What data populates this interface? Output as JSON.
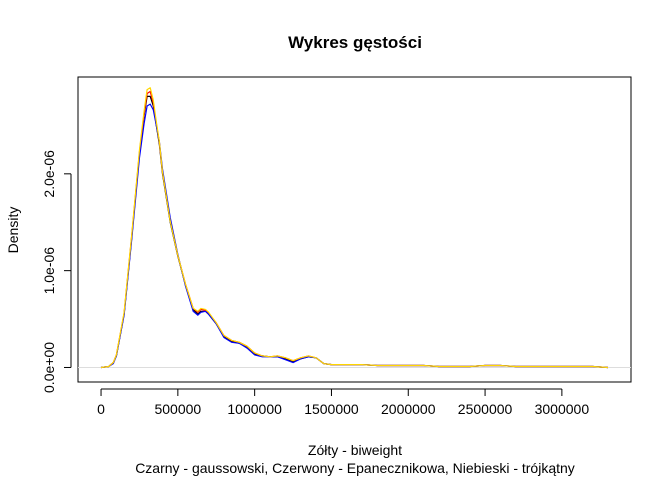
{
  "chart_data": {
    "type": "line",
    "title": "Wykres gęstości",
    "xlabel": "Zółty - biweight",
    "xlabel_line2": "Czarny - gaussowski, Czerwony - Epanecznikowa, Niebieski - trójkątny",
    "ylabel": "Density",
    "xlim": [
      -150000,
      3450000
    ],
    "ylim": [
      -1.5e-07,
      3e-06
    ],
    "x_ticks": [
      0,
      500000,
      1000000,
      1500000,
      2000000,
      2500000,
      3000000
    ],
    "x_tick_labels": [
      "0",
      "500000",
      "1000000",
      "1500000",
      "2000000",
      "2500000",
      "3000000"
    ],
    "y_ticks": [
      0,
      1e-06,
      2e-06
    ],
    "y_tick_labels": [
      "0.0e+00",
      "1.0e-06",
      "2.0e-06"
    ],
    "grid": false,
    "baseline_color": "#dddddd",
    "x": [
      0,
      50000,
      80000,
      100000,
      150000,
      200000,
      250000,
      280000,
      300000,
      320000,
      340000,
      360000,
      380000,
      400000,
      450000,
      500000,
      550000,
      600000,
      630000,
      650000,
      680000,
      700000,
      750000,
      800000,
      850000,
      900000,
      950000,
      1000000,
      1050000,
      1100000,
      1150000,
      1200000,
      1250000,
      1300000,
      1350000,
      1400000,
      1450000,
      1500000,
      1600000,
      1700000,
      1800000,
      1900000,
      2000000,
      2100000,
      2200000,
      2300000,
      2400000,
      2500000,
      2600000,
      2700000,
      2800000,
      2900000,
      3000000,
      3100000,
      3200000,
      3300000
    ],
    "series": [
      {
        "color": "#000000",
        "values": [
          0,
          1e-08,
          5e-08,
          1.2e-07,
          5.5e-07,
          1.35e-06,
          2.2e-06,
          2.6e-06,
          2.8e-06,
          2.8e-06,
          2.7e-06,
          2.5e-06,
          2.3e-06,
          2e-06,
          1.5e-06,
          1.15e-06,
          8.5e-07,
          6e-07,
          5.5e-07,
          5.8e-07,
          5.8e-07,
          5.5e-07,
          4.5e-07,
          3.2e-07,
          2.7e-07,
          2.5e-07,
          2.1e-07,
          1.4e-07,
          1.2e-07,
          1.1e-07,
          1.1e-07,
          9e-08,
          6e-08,
          9e-08,
          1.1e-07,
          1e-07,
          4e-08,
          3e-08,
          3e-08,
          3e-08,
          2e-08,
          2e-08,
          2e-08,
          2e-08,
          1e-08,
          1e-08,
          1e-08,
          2e-08,
          2e-08,
          1e-08,
          1e-08,
          1e-08,
          1e-08,
          1e-08,
          1e-08,
          0
        ]
      },
      {
        "color": "#ff0000",
        "values": [
          0,
          1e-08,
          5e-08,
          1.3e-07,
          5.6e-07,
          1.37e-06,
          2.22e-06,
          2.62e-06,
          2.83e-06,
          2.85e-06,
          2.73e-06,
          2.52e-06,
          2.32e-06,
          2.02e-06,
          1.52e-06,
          1.16e-06,
          8.6e-07,
          6.1e-07,
          5.7e-07,
          6e-07,
          5.9e-07,
          5.6e-07,
          4.6e-07,
          3.3e-07,
          2.8e-07,
          2.6e-07,
          2.2e-07,
          1.5e-07,
          1.2e-07,
          1.1e-07,
          1.2e-07,
          1e-07,
          7e-08,
          1e-07,
          1.2e-07,
          1e-07,
          4e-08,
          3e-08,
          3e-08,
          3e-08,
          2e-08,
          2e-08,
          2e-08,
          2e-08,
          1e-08,
          1e-08,
          1e-08,
          2e-08,
          2e-08,
          1e-08,
          1e-08,
          1e-08,
          1e-08,
          1e-08,
          1e-08,
          0
        ]
      },
      {
        "color": "#0000ff",
        "values": [
          0,
          1e-08,
          4e-08,
          1.2e-07,
          5.4e-07,
          1.33e-06,
          2.16e-06,
          2.52e-06,
          2.7e-06,
          2.72e-06,
          2.66e-06,
          2.5e-06,
          2.33e-06,
          2.05e-06,
          1.55e-06,
          1.17e-06,
          8.4e-07,
          5.8e-07,
          5.4e-07,
          5.7e-07,
          5.8e-07,
          5.5e-07,
          4.5e-07,
          3.1e-07,
          2.6e-07,
          2.5e-07,
          2e-07,
          1.3e-07,
          1.1e-07,
          1.1e-07,
          1.1e-07,
          8e-08,
          5e-08,
          9e-08,
          1.1e-07,
          1e-07,
          4e-08,
          3e-08,
          3e-08,
          3e-08,
          2e-08,
          2e-08,
          2e-08,
          2e-08,
          1e-08,
          1e-08,
          1e-08,
          2e-08,
          2e-08,
          1e-08,
          1e-08,
          1e-08,
          1e-08,
          1e-08,
          1e-08,
          0
        ]
      },
      {
        "color": "#ffd700",
        "values": [
          0,
          1e-08,
          5e-08,
          1.3e-07,
          5.7e-07,
          1.38e-06,
          2.24e-06,
          2.65e-06,
          2.87e-06,
          2.89e-06,
          2.76e-06,
          2.54e-06,
          2.33e-06,
          2.02e-06,
          1.51e-06,
          1.16e-06,
          8.6e-07,
          6.1e-07,
          5.8e-07,
          6.1e-07,
          6e-07,
          5.7e-07,
          4.6e-07,
          3.3e-07,
          2.8e-07,
          2.6e-07,
          2.2e-07,
          1.5e-07,
          1.2e-07,
          1.1e-07,
          1.2e-07,
          1e-07,
          7e-08,
          1e-07,
          1.2e-07,
          1e-07,
          4e-08,
          3e-08,
          3e-08,
          3e-08,
          2e-08,
          2e-08,
          2e-08,
          2e-08,
          1e-08,
          1e-08,
          1e-08,
          2e-08,
          2e-08,
          1e-08,
          1e-08,
          1e-08,
          1e-08,
          1e-08,
          1e-08,
          0
        ]
      }
    ]
  }
}
